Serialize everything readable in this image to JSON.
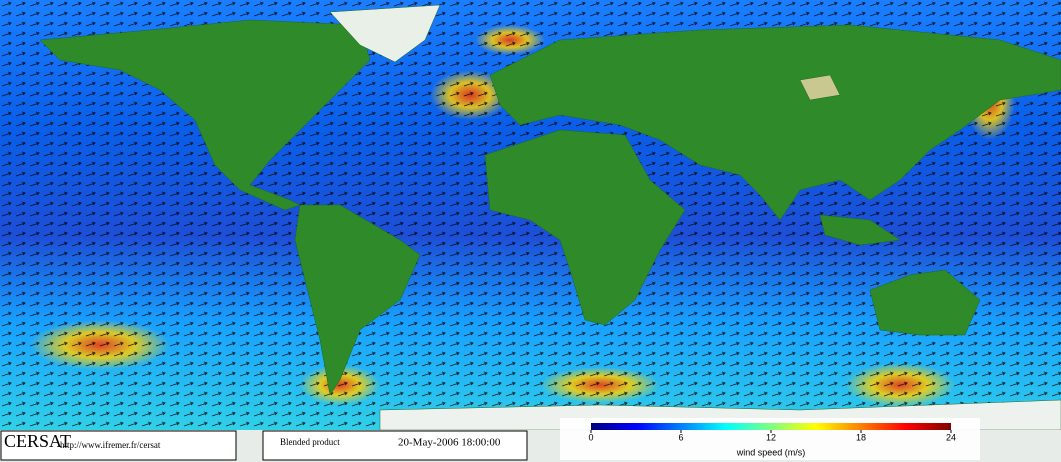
{
  "footer": {
    "logo": "CERSAT",
    "url": "http://www.ifremer.fr/cersat",
    "product": "Blended product",
    "date": "20-May-2006 18:00:00"
  },
  "colorbar": {
    "label": "wind speed (m/s)",
    "lim": [
      0,
      24
    ],
    "ticks": [
      0,
      6,
      12,
      18,
      24
    ],
    "colors": [
      "#00007f",
      "#0000ff",
      "#007fff",
      "#00ffff",
      "#7fff7f",
      "#ffff00",
      "#ff7f00",
      "#ff0000",
      "#7f0000"
    ]
  }
}
